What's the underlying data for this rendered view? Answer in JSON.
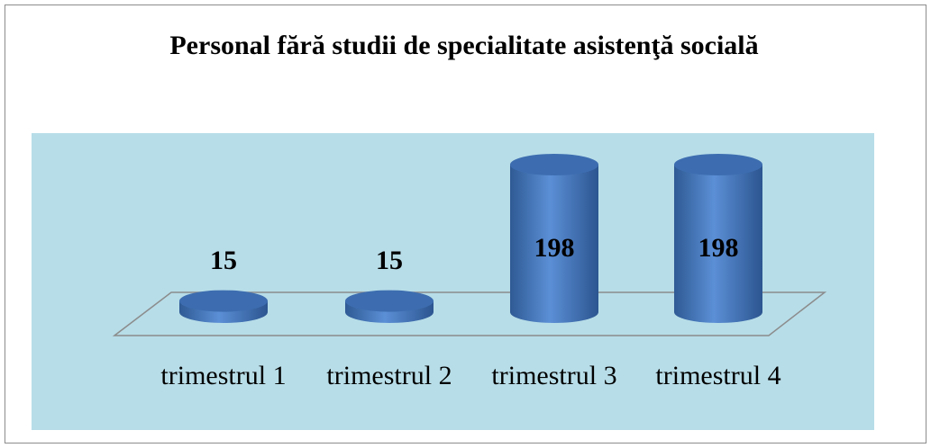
{
  "chart_data": {
    "type": "bar3d",
    "title": "Personal fără studii de specialitate asistenţă socială",
    "categories": [
      "trimestrul 1",
      "trimestrul 2",
      "trimestrul 3",
      "trimestrul 4"
    ],
    "values": [
      15,
      15,
      198,
      198
    ],
    "color": "#4f81bd"
  }
}
